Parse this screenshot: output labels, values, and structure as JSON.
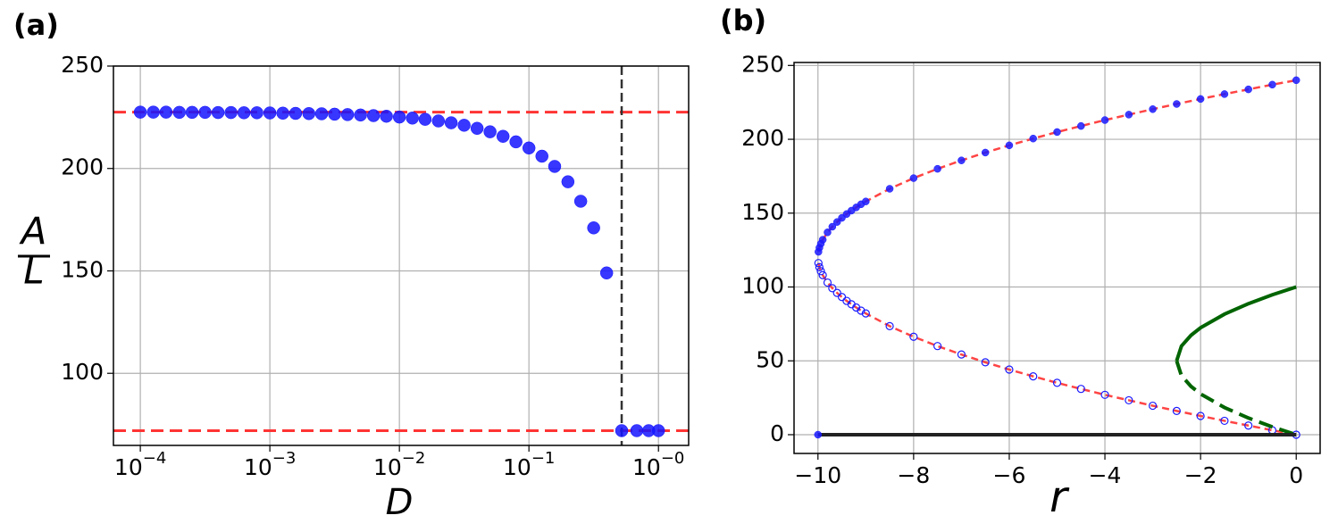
{
  "chart_data": [
    {
      "type": "scatter",
      "label": "(a)",
      "xlabel": "D",
      "ylabel_numerator": "A",
      "ylabel_denominator": "L",
      "xscale": "log",
      "xlim": [
        6.2e-05,
        1.71
      ],
      "ylim": [
        64.8,
        250
      ],
      "xticks": [
        {
          "value": 0.0001,
          "label": "10−4"
        },
        {
          "value": 0.001,
          "label": "10−3"
        },
        {
          "value": 0.01,
          "label": "10−2"
        },
        {
          "value": 0.1,
          "label": "10−1"
        },
        {
          "value": 1,
          "label": "10−0"
        }
      ],
      "yticks": [
        100,
        150,
        200,
        250
      ],
      "grid": true,
      "series": [
        {
          "color": "#1414ff",
          "marker": "filled",
          "x": [
            0.0001,
            0.000126,
            0.000158,
            0.0002,
            0.000251,
            0.000316,
            0.000398,
            0.000501,
            0.000631,
            0.000794,
            0.001,
            0.00126,
            0.00158,
            0.002,
            0.00251,
            0.00316,
            0.00398,
            0.00501,
            0.00631,
            0.00794,
            0.01,
            0.0126,
            0.0158,
            0.02,
            0.0251,
            0.0316,
            0.0398,
            0.0501,
            0.0631,
            0.0794,
            0.1,
            0.126,
            0.158,
            0.2,
            0.251,
            0.316,
            0.398,
            0.52,
            0.68,
            0.84,
            1.0
          ],
          "values": [
            227.5,
            227.5,
            227.5,
            227.4,
            227.4,
            227.4,
            227.3,
            227.3,
            227.2,
            227.2,
            227.1,
            227,
            226.9,
            226.8,
            226.7,
            226.5,
            226.3,
            226.1,
            225.8,
            225.5,
            225.1,
            224.6,
            224,
            223.2,
            222.3,
            221.1,
            219.6,
            217.9,
            215.7,
            213,
            210,
            206,
            201,
            193.5,
            184,
            171,
            149,
            72,
            72,
            72,
            72
          ]
        }
      ],
      "hlines": [
        {
          "value": 227.5,
          "color": "#ff3333"
        },
        {
          "value": 72,
          "color": "#ff3333"
        }
      ],
      "vlines": [
        {
          "value": 0.52,
          "color": "#333333"
        }
      ]
    },
    {
      "type": "scatter",
      "label": "(b)",
      "xlabel": "r",
      "xscale": "linear",
      "xlim": [
        -10.5,
        0.5
      ],
      "ylim": [
        -12.7,
        252
      ],
      "xticks": [
        {
          "value": -10,
          "label": "−10"
        },
        {
          "value": -8,
          "label": "−8"
        },
        {
          "value": -6,
          "label": "−6"
        },
        {
          "value": -4,
          "label": "−4"
        },
        {
          "value": -2,
          "label": "−2"
        },
        0
      ],
      "yticks": [
        0,
        50,
        100,
        150,
        200,
        250
      ],
      "grid": true,
      "series": [
        {
          "color": "#1a1aff",
          "marker": "filled",
          "line_color": "#ff4444",
          "line_style": "dashed",
          "x": [
            -9.99,
            -9.97,
            -9.94,
            -9.9,
            -9.8,
            -9.7,
            -9.6,
            -9.5,
            -9.4,
            -9.3,
            -9.2,
            -9.1,
            -9,
            -8.5,
            -8,
            -7.5,
            -7,
            -6.5,
            -6,
            -5.5,
            -5,
            -4.5,
            -4,
            -3.5,
            -3,
            -2.5,
            -2,
            -1.5,
            -1,
            -0.5,
            0
          ],
          "values": [
            123.8,
            126.6,
            129.3,
            132,
            137,
            140.8,
            144,
            146.8,
            149.4,
            151.7,
            153.9,
            156,
            157.9,
            166.5,
            173.7,
            180,
            185.7,
            191,
            195.9,
            200.5,
            204.9,
            209,
            213,
            216.7,
            220.4,
            223.9,
            227.3,
            230.6,
            233.8,
            237,
            240
          ]
        },
        {
          "color": "#1a1aff",
          "marker": "open",
          "line_color": "#ff4444",
          "line_style": "dashed",
          "x": [
            -9.99,
            -9.97,
            -9.94,
            -9.9,
            -9.8,
            -9.7,
            -9.6,
            -9.5,
            -9.4,
            -9.3,
            -9.2,
            -9.1,
            -9,
            -8.5,
            -8,
            -7.5,
            -7,
            -6.5,
            -6,
            -5.5,
            -5,
            -4.5,
            -4,
            -3.5,
            -3,
            -2.5,
            -2,
            -1.5,
            -1,
            -0.5,
            0
          ],
          "values": [
            116.2,
            113.4,
            110.7,
            108,
            103,
            99.2,
            96,
            93.2,
            90.6,
            88.3,
            86.1,
            84,
            82.1,
            73.5,
            66.3,
            60,
            54.3,
            49,
            44.1,
            39.5,
            35.1,
            31,
            27,
            23.3,
            19.6,
            16.1,
            12.7,
            9.4,
            6.2,
            3,
            0
          ]
        },
        {
          "color": "#006400",
          "marker": "none",
          "line_color": "#006400",
          "line_style": "solid",
          "x": [
            -2.5,
            -2.4,
            -2.2,
            -2,
            -1.5,
            -1,
            -0.5,
            0
          ],
          "values": [
            50,
            60,
            67.3,
            72.4,
            81.6,
            88.7,
            94.7,
            100
          ]
        },
        {
          "color": "#006400",
          "marker": "none",
          "line_color": "#006400",
          "line_style": "dashed",
          "x": [
            -2.5,
            -2.4,
            -2.2,
            -2,
            -1.5,
            -1,
            -0.5,
            0
          ],
          "values": [
            50,
            40,
            32.7,
            27.6,
            18.4,
            11.3,
            5.3,
            0
          ]
        },
        {
          "color": "#222222",
          "marker": "none",
          "line_color": "#222222",
          "line_style": "solid",
          "x": [
            -10,
            0
          ],
          "values": [
            0,
            0
          ]
        },
        {
          "color": "#1a1aff",
          "marker": "filled",
          "x": [
            -10
          ],
          "values": [
            0
          ]
        }
      ]
    }
  ]
}
